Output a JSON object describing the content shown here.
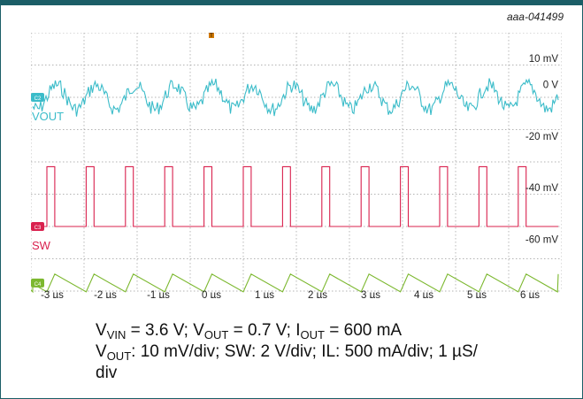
{
  "figure_id": "aaa-041499",
  "chart_data": {
    "type": "line",
    "subtype": "oscilloscope-capture",
    "grid": true,
    "grid_style": "dotted",
    "x_tick_labels": [
      "-3 µs",
      "-2 µs",
      "-1 µs",
      "0 µs",
      "1 µs",
      "2 µs",
      "3 µs",
      "4 µs",
      "5 µs",
      "6 µs"
    ],
    "x_range_us": [
      -3.4,
      6.6
    ],
    "y_tick_labels": [
      "10 mV",
      "0 V",
      "-20 mV",
      "-40 mV",
      "-60 mV"
    ],
    "y_range_mv": [
      20,
      -80
    ],
    "switching_period_us": 0.74,
    "series": [
      {
        "name": "VOUT",
        "marker": "C2",
        "color": "#3bbcc9",
        "baseline_div": 2,
        "waveform": "ripple",
        "amplitude_div": 0.5,
        "noise": true
      },
      {
        "name": "SW",
        "marker": "C3",
        "color": "#d9214e",
        "baseline_div": 6,
        "waveform": "square",
        "high_div": 4.15,
        "duty": 0.2
      },
      {
        "name": "IL",
        "marker": "C4",
        "color": "#7cb82f",
        "baseline_div": 7.75,
        "waveform": "triangle",
        "amplitude_div": 0.55,
        "rise_fraction": 0.2
      }
    ],
    "trigger_marker": "T"
  },
  "caption": {
    "line1": [
      {
        "t": "V"
      },
      {
        "sub": "VIN"
      },
      {
        "t": " = 3.6 V; V"
      },
      {
        "sub": "OUT"
      },
      {
        "t": " = 0.7 V; I"
      },
      {
        "sub": "OUT"
      },
      {
        "t": " = 600 mA"
      }
    ],
    "line2": [
      {
        "t": "V"
      },
      {
        "sub": "OUT"
      },
      {
        "t": ": 10 mV/div; SW: 2 V/div; IL: 500 mA/div; 1 µS/"
      }
    ],
    "line3": [
      {
        "t": "div"
      }
    ]
  },
  "colors": {
    "frame": "#1b5e67",
    "grid": "#9a9a9a",
    "text": "#222222"
  }
}
